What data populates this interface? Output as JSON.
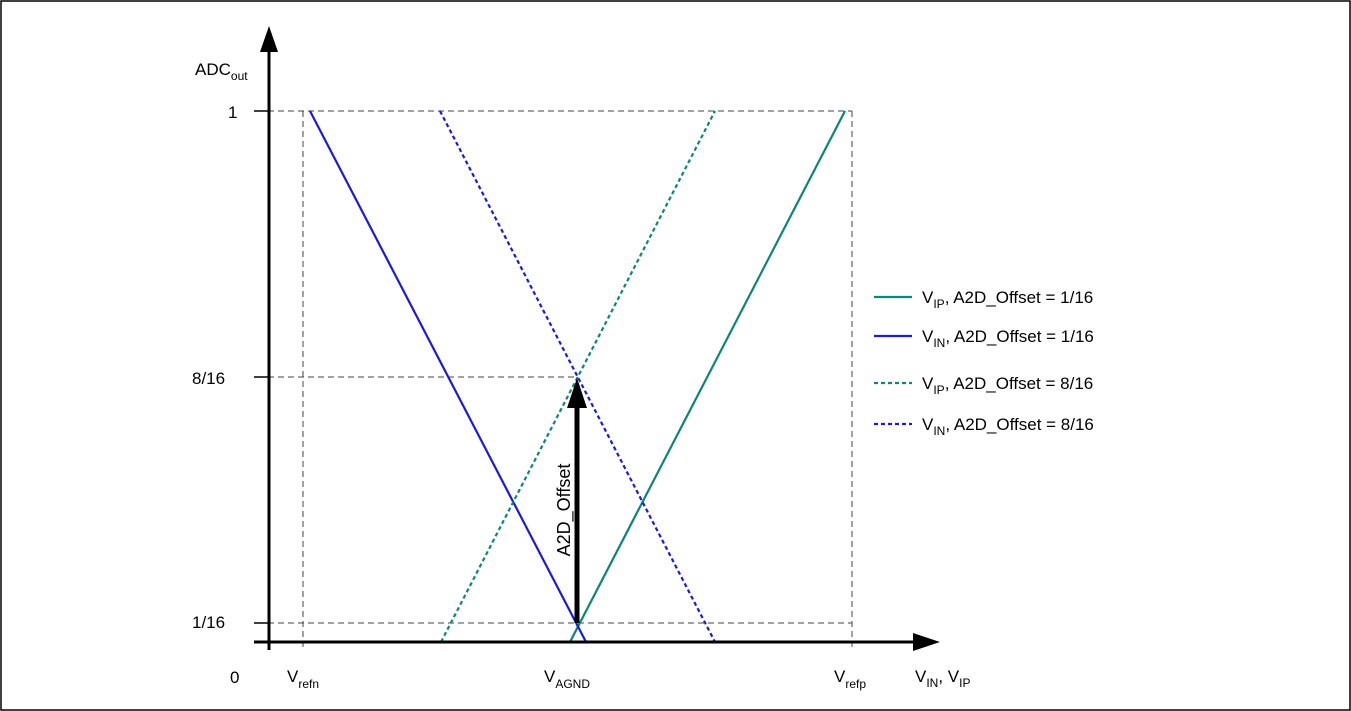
{
  "colors": {
    "teal": "#0d8577",
    "blue": "#1a1adc",
    "axis": "#000000",
    "guide": "#444444"
  },
  "axes": {
    "y_label": {
      "main": "ADC",
      "sub": "out"
    },
    "x_label": {
      "main1": "V",
      "sub1": "IN",
      "sep": ", ",
      "main2": "V",
      "sub2": "IP"
    },
    "origin": "0",
    "y_ticks": [
      "1",
      "8/16",
      "1/16"
    ],
    "x_ticks": [
      {
        "main": "V",
        "sub": "refn"
      },
      {
        "main": "V",
        "sub": "AGND"
      },
      {
        "main": "V",
        "sub": "refp"
      }
    ]
  },
  "arrow_label": "A2D_Offset",
  "legend": [
    {
      "main": "V",
      "sub": "IP",
      "text": ", A2D_Offset = 1/16",
      "style": "solid",
      "color": "teal"
    },
    {
      "main": "V",
      "sub": "IN",
      "text": ", A2D_Offset = 1/16",
      "style": "solid",
      "color": "blue"
    },
    {
      "main": "V",
      "sub": "IP",
      "text": ", A2D_Offset = 8/16",
      "style": "dotted",
      "color": "teal"
    },
    {
      "main": "V",
      "sub": "IN",
      "text": ", A2D_Offset = 8/16",
      "style": "dotted",
      "color": "blue"
    }
  ]
}
